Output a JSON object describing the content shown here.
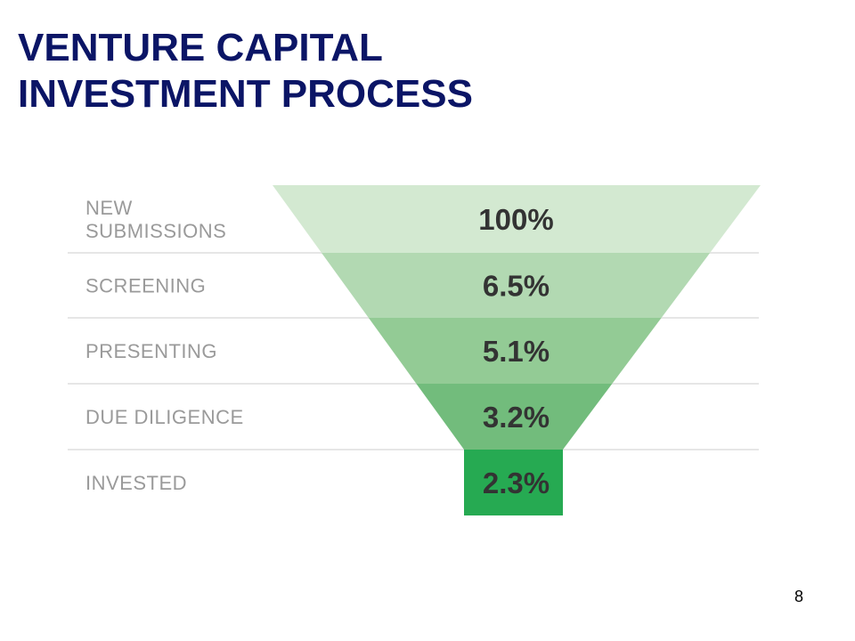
{
  "slide": {
    "title_line1": "VENTURE CAPITAL",
    "title_line2": "INVESTMENT PROCESS",
    "page_number": "8"
  },
  "chart_data": {
    "type": "funnel",
    "stages": [
      {
        "label": [
          "NEW",
          "SUBMISSIONS"
        ],
        "value": 100,
        "display": "100%",
        "color": "#d3e9d1"
      },
      {
        "label": [
          "SCREENING"
        ],
        "value": 6.5,
        "display": "6.5%",
        "color": "#b2d9b2"
      },
      {
        "label": [
          "PRESENTING"
        ],
        "value": 5.1,
        "display": "5.1%",
        "color": "#93cb95"
      },
      {
        "label": [
          "DUE DILIGENCE"
        ],
        "value": 3.2,
        "display": "3.2%",
        "color": "#72bc7c"
      },
      {
        "label": [
          "INVESTED"
        ],
        "value": 2.3,
        "display": "2.3%",
        "color": "#26aa52"
      }
    ],
    "colors": {
      "title": "#0b1566",
      "label": "#9a9a9a",
      "value": "#333333",
      "divider": "#e6e6e6"
    }
  }
}
